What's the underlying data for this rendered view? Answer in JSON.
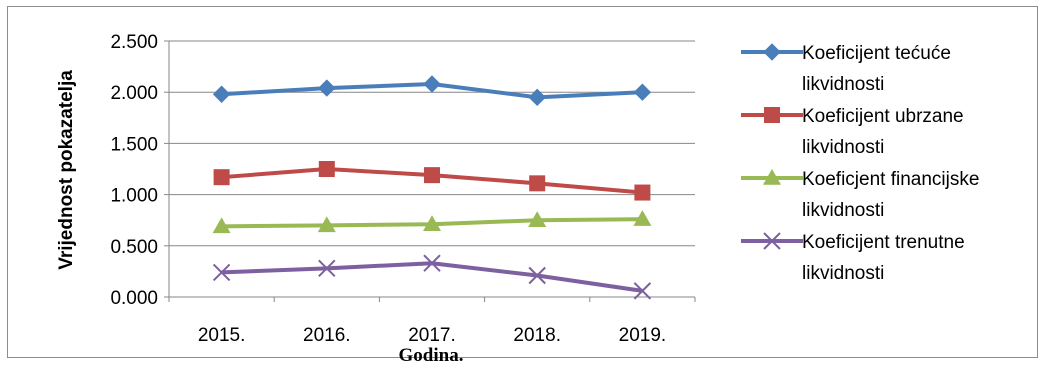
{
  "chart_data": {
    "type": "line",
    "categories": [
      "2015.",
      "2016.",
      "2017.",
      "2018.",
      "2019."
    ],
    "ylim": [
      0,
      2.5
    ],
    "yticks": [
      0,
      0.5,
      1.0,
      1.5,
      2.0,
      2.5
    ],
    "ytick_labels": [
      "0.000",
      "0.500",
      "1.000",
      "1.500",
      "2.000",
      "2.500"
    ],
    "xlabel": "Godina.",
    "ylabel": "Vrijednost pokazatelja",
    "grid": true,
    "legend_position": "right",
    "series": [
      {
        "name": "Koeficijent tećuće likvidnosti",
        "line1": "Koeficijent tećuće",
        "line2": "likvidnosti",
        "color": "#4a7ebb",
        "marker": "diamond",
        "values": [
          1.98,
          2.04,
          2.08,
          1.95,
          2.0
        ]
      },
      {
        "name": "Koeficijent ubrzane likvidnosti",
        "line1": "Koeficijent ubrzane",
        "line2": "likvidnosti",
        "color": "#be4b48",
        "marker": "square",
        "values": [
          1.17,
          1.25,
          1.19,
          1.11,
          1.02
        ]
      },
      {
        "name": "Koeficjent financijske likvidnosti",
        "line1": "Koeficjent financijske",
        "line2": "likvidnosti",
        "color": "#98b954",
        "marker": "triangle",
        "values": [
          0.69,
          0.7,
          0.71,
          0.75,
          0.76
        ]
      },
      {
        "name": "Koeficijent trenutne likvidnosti",
        "line1": "Koeficijent trenutne",
        "line2": "likvidnosti",
        "color": "#7d60a0",
        "marker": "x",
        "values": [
          0.24,
          0.28,
          0.33,
          0.21,
          0.06
        ]
      }
    ]
  }
}
